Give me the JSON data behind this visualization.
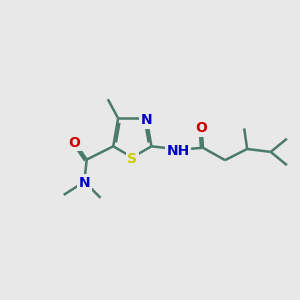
{
  "background_color": "#e8e8e8",
  "bond_color": "#4a7a6a",
  "bond_width": 1.8,
  "atom_colors": {
    "S": "#cccc00",
    "N": "#0000cc",
    "O": "#cc0000",
    "C": "#4a7a6a",
    "H": "#808080"
  },
  "font_size": 10,
  "figsize": [
    3.0,
    3.0
  ],
  "dpi": 100
}
